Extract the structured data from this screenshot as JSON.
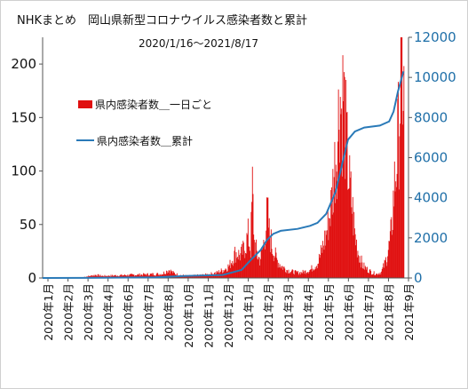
{
  "chart_data": {
    "type": "bar+line",
    "title": "NHKまとめ　岡山県新型コロナウイルス感染者数と累計",
    "subtitle": "2020/1/16～2021/8/17",
    "x_tick_labels": [
      "2020年1月",
      "2020年2月",
      "2020年3月",
      "2020年4月",
      "2020年6月",
      "2020年7月",
      "2020年8月",
      "2020年10月",
      "2020年11月",
      "2020年12月",
      "2021年1月",
      "2021年2月",
      "2021年3月",
      "2021年4月",
      "2021年5月",
      "2021年6月",
      "2021年7月",
      "2021年8月",
      "2021年9月"
    ],
    "y_left": {
      "ticks": [
        "0",
        "50",
        "100",
        "150",
        "200"
      ],
      "range": [
        0,
        225
      ]
    },
    "y_right": {
      "ticks": [
        "0",
        "2000",
        "4000",
        "6000",
        "8000",
        "10000",
        "12000"
      ],
      "range": [
        0,
        12000
      ]
    },
    "legend": [
      {
        "label": "県内感染者数＿一日ごと",
        "color": "#e01010",
        "kind": "bar"
      },
      {
        "label": "県内感染者数＿累計",
        "color": "#2a7ab8",
        "kind": "line"
      }
    ],
    "series": [
      {
        "name": "県内感染者数＿一日ごと",
        "axis": "left",
        "color": "#e01010",
        "points": [
          {
            "x": "2020-03-22",
            "y": 1
          },
          {
            "x": "2020-04-10",
            "y": 3
          },
          {
            "x": "2020-04-20",
            "y": 2
          },
          {
            "x": "2020-07-25",
            "y": 4
          },
          {
            "x": "2020-08-05",
            "y": 8
          },
          {
            "x": "2020-08-12",
            "y": 5
          },
          {
            "x": "2020-08-20",
            "y": 3
          },
          {
            "x": "2020-09-05",
            "y": 2
          },
          {
            "x": "2020-10-01",
            "y": 3
          },
          {
            "x": "2020-10-20",
            "y": 5
          },
          {
            "x": "2020-11-01",
            "y": 8
          },
          {
            "x": "2020-11-10",
            "y": 12
          },
          {
            "x": "2020-11-20",
            "y": 25
          },
          {
            "x": "2020-11-28",
            "y": 22
          },
          {
            "x": "2020-12-05",
            "y": 30
          },
          {
            "x": "2020-12-10",
            "y": 42
          },
          {
            "x": "2020-12-14",
            "y": 28
          },
          {
            "x": "2020-12-17",
            "y": 88
          },
          {
            "x": "2020-12-20",
            "y": 35
          },
          {
            "x": "2020-12-25",
            "y": 22
          },
          {
            "x": "2020-12-29",
            "y": 18
          },
          {
            "x": "2021-01-03",
            "y": 30
          },
          {
            "x": "2021-01-08",
            "y": 52
          },
          {
            "x": "2021-01-10",
            "y": 65
          },
          {
            "x": "2021-01-13",
            "y": 45
          },
          {
            "x": "2021-01-18",
            "y": 30
          },
          {
            "x": "2021-01-25",
            "y": 18
          },
          {
            "x": "2021-02-01",
            "y": 12
          },
          {
            "x": "2021-02-10",
            "y": 8
          },
          {
            "x": "2021-02-20",
            "y": 6
          },
          {
            "x": "2021-03-01",
            "y": 5
          },
          {
            "x": "2021-03-10",
            "y": 6
          },
          {
            "x": "2021-03-20",
            "y": 8
          },
          {
            "x": "2021-04-01",
            "y": 15
          },
          {
            "x": "2021-04-08",
            "y": 28
          },
          {
            "x": "2021-04-15",
            "y": 45
          },
          {
            "x": "2021-04-22",
            "y": 70
          },
          {
            "x": "2021-04-28",
            "y": 110
          },
          {
            "x": "2021-05-03",
            "y": 140
          },
          {
            "x": "2021-05-06",
            "y": 188
          },
          {
            "x": "2021-05-09",
            "y": 160
          },
          {
            "x": "2021-05-12",
            "y": 185
          },
          {
            "x": "2021-05-15",
            "y": 150
          },
          {
            "x": "2021-05-18",
            "y": 120
          },
          {
            "x": "2021-05-22",
            "y": 90
          },
          {
            "x": "2021-05-26",
            "y": 70
          },
          {
            "x": "2021-05-31",
            "y": 40
          },
          {
            "x": "2021-06-05",
            "y": 25
          },
          {
            "x": "2021-06-12",
            "y": 12
          },
          {
            "x": "2021-06-20",
            "y": 8
          },
          {
            "x": "2021-06-28",
            "y": 5
          },
          {
            "x": "2021-07-05",
            "y": 4
          },
          {
            "x": "2021-07-12",
            "y": 6
          },
          {
            "x": "2021-07-18",
            "y": 15
          },
          {
            "x": "2021-07-24",
            "y": 30
          },
          {
            "x": "2021-07-28",
            "y": 45
          },
          {
            "x": "2021-08-01",
            "y": 85
          },
          {
            "x": "2021-08-04",
            "y": 105
          },
          {
            "x": "2021-08-07",
            "y": 130
          },
          {
            "x": "2021-08-09",
            "y": 150
          },
          {
            "x": "2021-08-11",
            "y": 180
          },
          {
            "x": "2021-08-13",
            "y": 216
          },
          {
            "x": "2021-08-15",
            "y": 200
          },
          {
            "x": "2021-08-17",
            "y": 178
          }
        ]
      },
      {
        "name": "県内感染者数＿累計",
        "axis": "right",
        "color": "#2a7ab8",
        "points": [
          {
            "x": "2020-01-16",
            "y": 0
          },
          {
            "x": "2020-03-22",
            "y": 5
          },
          {
            "x": "2020-07-15",
            "y": 30
          },
          {
            "x": "2020-08-31",
            "y": 100
          },
          {
            "x": "2020-10-31",
            "y": 150
          },
          {
            "x": "2020-11-30",
            "y": 400
          },
          {
            "x": "2020-12-15",
            "y": 900
          },
          {
            "x": "2020-12-31",
            "y": 1400
          },
          {
            "x": "2021-01-10",
            "y": 1900
          },
          {
            "x": "2021-01-20",
            "y": 2200
          },
          {
            "x": "2021-02-01",
            "y": 2350
          },
          {
            "x": "2021-02-28",
            "y": 2450
          },
          {
            "x": "2021-03-20",
            "y": 2600
          },
          {
            "x": "2021-04-01",
            "y": 2750
          },
          {
            "x": "2021-04-15",
            "y": 3200
          },
          {
            "x": "2021-04-30",
            "y": 4300
          },
          {
            "x": "2021-05-10",
            "y": 5600
          },
          {
            "x": "2021-05-20",
            "y": 6900
          },
          {
            "x": "2021-05-31",
            "y": 7300
          },
          {
            "x": "2021-06-15",
            "y": 7500
          },
          {
            "x": "2021-07-10",
            "y": 7600
          },
          {
            "x": "2021-07-25",
            "y": 7800
          },
          {
            "x": "2021-08-01",
            "y": 8300
          },
          {
            "x": "2021-08-08",
            "y": 9300
          },
          {
            "x": "2021-08-17",
            "y": 10300
          }
        ]
      }
    ]
  }
}
